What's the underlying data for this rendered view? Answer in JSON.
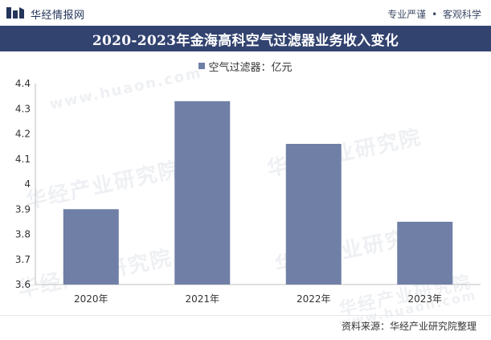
{
  "header": {
    "brand": "华经情报网",
    "slogan_left": "专业严谨",
    "slogan_sep": "•",
    "slogan_right": "客观科学",
    "logo_icon": "bar-logo-icon"
  },
  "chart_data": {
    "type": "bar",
    "title": "2020-2023年金海高科空气过滤器业务收入变化",
    "legend": [
      "空气过滤器：亿元"
    ],
    "legend_position": "top",
    "categories": [
      "2020年",
      "2021年",
      "2022年",
      "2023年"
    ],
    "series": [
      {
        "name": "空气过滤器：亿元",
        "values": [
          3.9,
          4.33,
          4.16,
          3.85
        ],
        "color": "#6f7fa6"
      }
    ],
    "ylim": [
      3.6,
      4.4
    ],
    "yticks": [
      "3.6",
      "3.7",
      "3.8",
      "3.9",
      "4",
      "4.1",
      "4.2",
      "4.3",
      "4.4"
    ],
    "grid": false
  },
  "watermark": {
    "text_cn": "华经产业研究院",
    "text_en": "www.huaon.com"
  },
  "footer": {
    "source": "资料来源：华经产业研究院整理"
  }
}
